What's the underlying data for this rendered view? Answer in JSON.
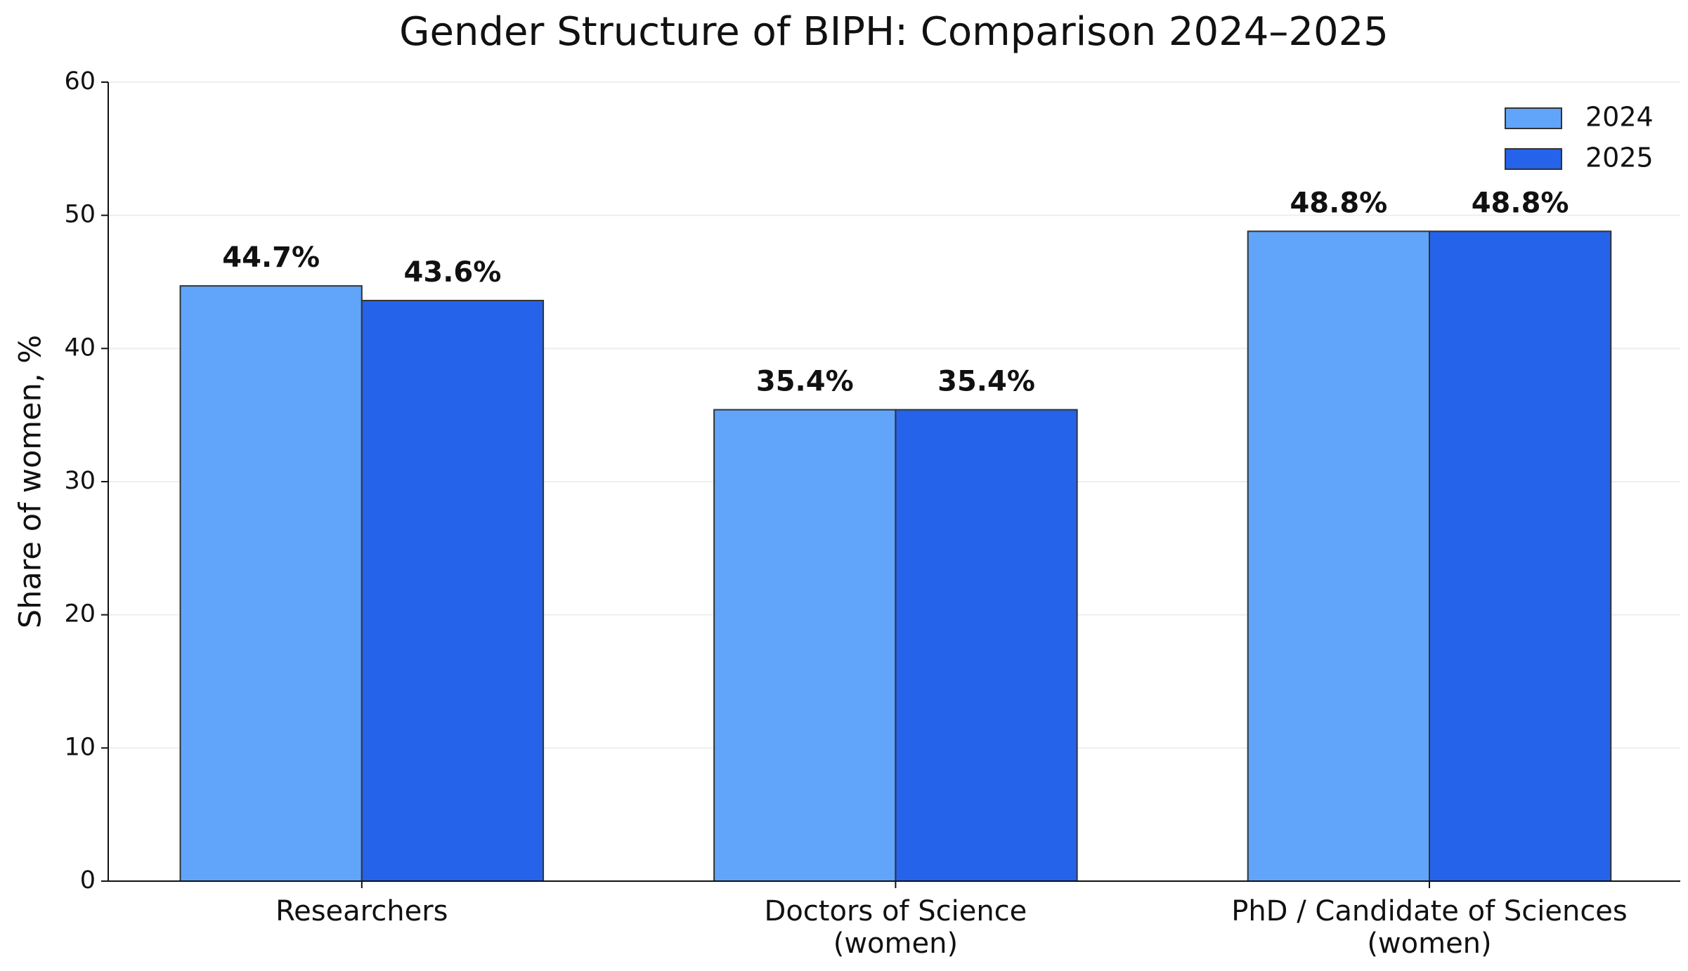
{
  "chart_data": {
    "type": "bar",
    "title": "Gender Structure of BIPH: Comparison 2024–2025",
    "y_label": "Share of women, %",
    "categories": [
      "Researchers",
      "Doctors of Science\n(women)",
      "PhD / Candidate of Sciences\n(women)"
    ],
    "series": [
      {
        "name": "2024",
        "color": "#60a5fa",
        "values": [
          44.7,
          35.4,
          48.8
        ],
        "value_labels": [
          "44.7%",
          "35.4%",
          "48.8%"
        ]
      },
      {
        "name": "2025",
        "color": "#2563eb",
        "values": [
          43.6,
          35.4,
          48.8
        ],
        "value_labels": [
          "43.6%",
          "35.4%",
          "48.8%"
        ]
      }
    ],
    "ylim": [
      0,
      60
    ],
    "yticks": [
      0,
      10,
      20,
      30,
      40,
      50,
      60
    ],
    "grid": true,
    "legend": "upper right"
  }
}
